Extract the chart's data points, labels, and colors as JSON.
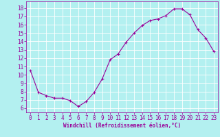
{
  "x": [
    0,
    1,
    2,
    3,
    4,
    5,
    6,
    7,
    8,
    9,
    10,
    11,
    12,
    13,
    14,
    15,
    16,
    17,
    18,
    19,
    20,
    21,
    22,
    23
  ],
  "y": [
    10.5,
    7.9,
    7.5,
    7.2,
    7.2,
    6.9,
    6.2,
    6.8,
    7.9,
    9.5,
    11.8,
    12.5,
    13.9,
    15.0,
    15.9,
    16.5,
    16.7,
    17.1,
    17.9,
    17.9,
    17.2,
    15.4,
    14.4,
    12.8
  ],
  "line_color": "#990099",
  "marker": "+",
  "marker_size": 3,
  "marker_linewidth": 0.8,
  "line_width": 0.8,
  "background_color": "#b3f0f0",
  "grid_color": "#ffffff",
  "xlabel": "Windchill (Refroidissement éolien,°C)",
  "xlabel_fontsize": 5.5,
  "tick_fontsize": 5.5,
  "ylim": [
    5.5,
    18.8
  ],
  "xlim": [
    -0.5,
    23.5
  ],
  "yticks": [
    6,
    7,
    8,
    9,
    10,
    11,
    12,
    13,
    14,
    15,
    16,
    17,
    18
  ],
  "xticks": [
    0,
    1,
    2,
    3,
    4,
    5,
    6,
    7,
    8,
    9,
    10,
    11,
    12,
    13,
    14,
    15,
    16,
    17,
    18,
    19,
    20,
    21,
    22,
    23
  ]
}
